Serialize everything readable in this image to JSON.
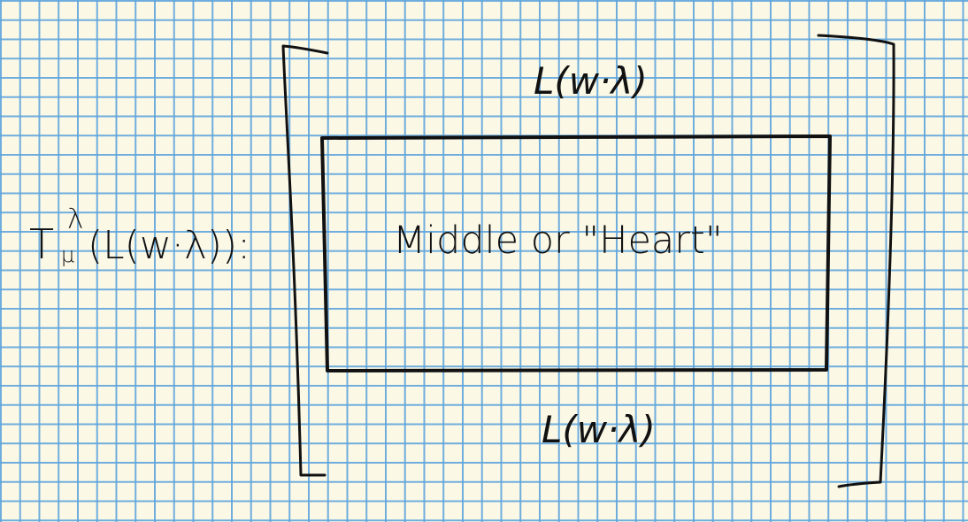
{
  "diagram": {
    "operator_label": "T",
    "operator_superscript": "λ",
    "operator_subscript": "μ",
    "operator_argument": "(L(w·λ)):",
    "top_label": "L(w·λ)",
    "middle_label": "Middle or \"Heart\"",
    "bottom_label": "L(w·λ)"
  },
  "colors": {
    "paper": "#fbf8e6",
    "grid": "#5fa5dc",
    "ink": "#111111"
  }
}
